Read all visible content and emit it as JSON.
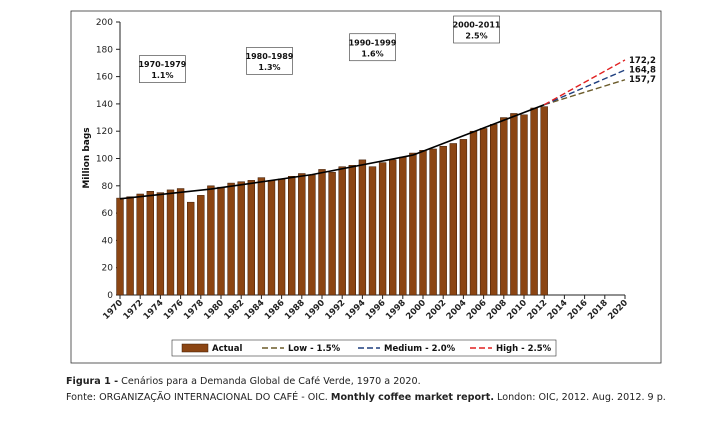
{
  "chart_data": {
    "type": "bar",
    "ylabel": "Million bags",
    "ylim": [
      0,
      200
    ],
    "yticks": [
      0,
      20,
      40,
      60,
      80,
      100,
      120,
      140,
      160,
      180,
      200
    ],
    "xticks": [
      1970,
      1972,
      1974,
      1976,
      1978,
      1980,
      1982,
      1984,
      1986,
      1988,
      1990,
      1992,
      1994,
      1996,
      1998,
      2000,
      2002,
      2004,
      2006,
      2008,
      2010,
      2012,
      2014,
      2016,
      2018,
      2020
    ],
    "grid": false,
    "legend_position": "bottom",
    "actual": {
      "name": "Actual",
      "color": "#8B4513",
      "years": [
        1970,
        1971,
        1972,
        1973,
        1974,
        1975,
        1976,
        1977,
        1978,
        1979,
        1980,
        1981,
        1982,
        1983,
        1984,
        1985,
        1986,
        1987,
        1988,
        1989,
        1990,
        1991,
        1992,
        1993,
        1994,
        1995,
        1996,
        1997,
        1998,
        1999,
        2000,
        2001,
        2002,
        2003,
        2004,
        2005,
        2006,
        2007,
        2008,
        2009,
        2010,
        2011,
        2012
      ],
      "values": [
        71,
        72,
        74,
        76,
        75,
        77,
        78,
        68,
        73,
        80,
        79,
        82,
        83,
        84,
        86,
        84,
        85,
        87,
        89,
        88,
        92,
        90,
        94,
        95,
        99,
        94,
        97,
        99,
        101,
        104,
        106,
        107,
        109,
        111,
        114,
        120,
        122,
        125,
        130,
        133,
        132,
        137,
        138
      ]
    },
    "trend_segments": [
      {
        "x": [
          1970,
          1979
        ],
        "y": [
          70.5,
          77.6
        ]
      },
      {
        "x": [
          1979,
          1989
        ],
        "y": [
          77.6,
          88.2
        ]
      },
      {
        "x": [
          1989,
          1999
        ],
        "y": [
          88.2,
          102.5
        ]
      },
      {
        "x": [
          1999,
          2012
        ],
        "y": [
          102.5,
          139.4
        ]
      }
    ],
    "scenarios": [
      {
        "name": "Low - 1.5%",
        "color": "#6B5B2A",
        "start": [
          2012,
          139.4
        ],
        "end": [
          2020,
          157.7
        ],
        "end_label": "157,7"
      },
      {
        "name": "Medium - 2.0%",
        "color": "#1F3F7F",
        "start": [
          2012,
          139.4
        ],
        "end": [
          2020,
          164.8
        ],
        "end_label": "164,8"
      },
      {
        "name": "High - 2.5%",
        "color": "#E02020",
        "start": [
          2012,
          139.4
        ],
        "end": [
          2020,
          172.2
        ],
        "end_label": "172,2"
      }
    ],
    "annotations": [
      {
        "period": "1970-1979",
        "rate": "1.1%"
      },
      {
        "period": "1980-1989",
        "rate": "1.3%"
      },
      {
        "period": "1990-1999",
        "rate": "1.6%"
      },
      {
        "period": "2000-2011",
        "rate": "2.5%"
      }
    ]
  },
  "caption": {
    "figure_label": "Figura 1 -",
    "figure_text": " Cenários para a Demanda Global de Café Verde, 1970 a 2020.",
    "source_prefix": "Fonte: ORGANIZAÇÃO INTERNACIONAL DO CAFÉ - OIC. ",
    "source_title": "Monthly coffee market report.",
    "source_suffix": " London: OIC, 2012. Aug. 2012. 9 p."
  }
}
